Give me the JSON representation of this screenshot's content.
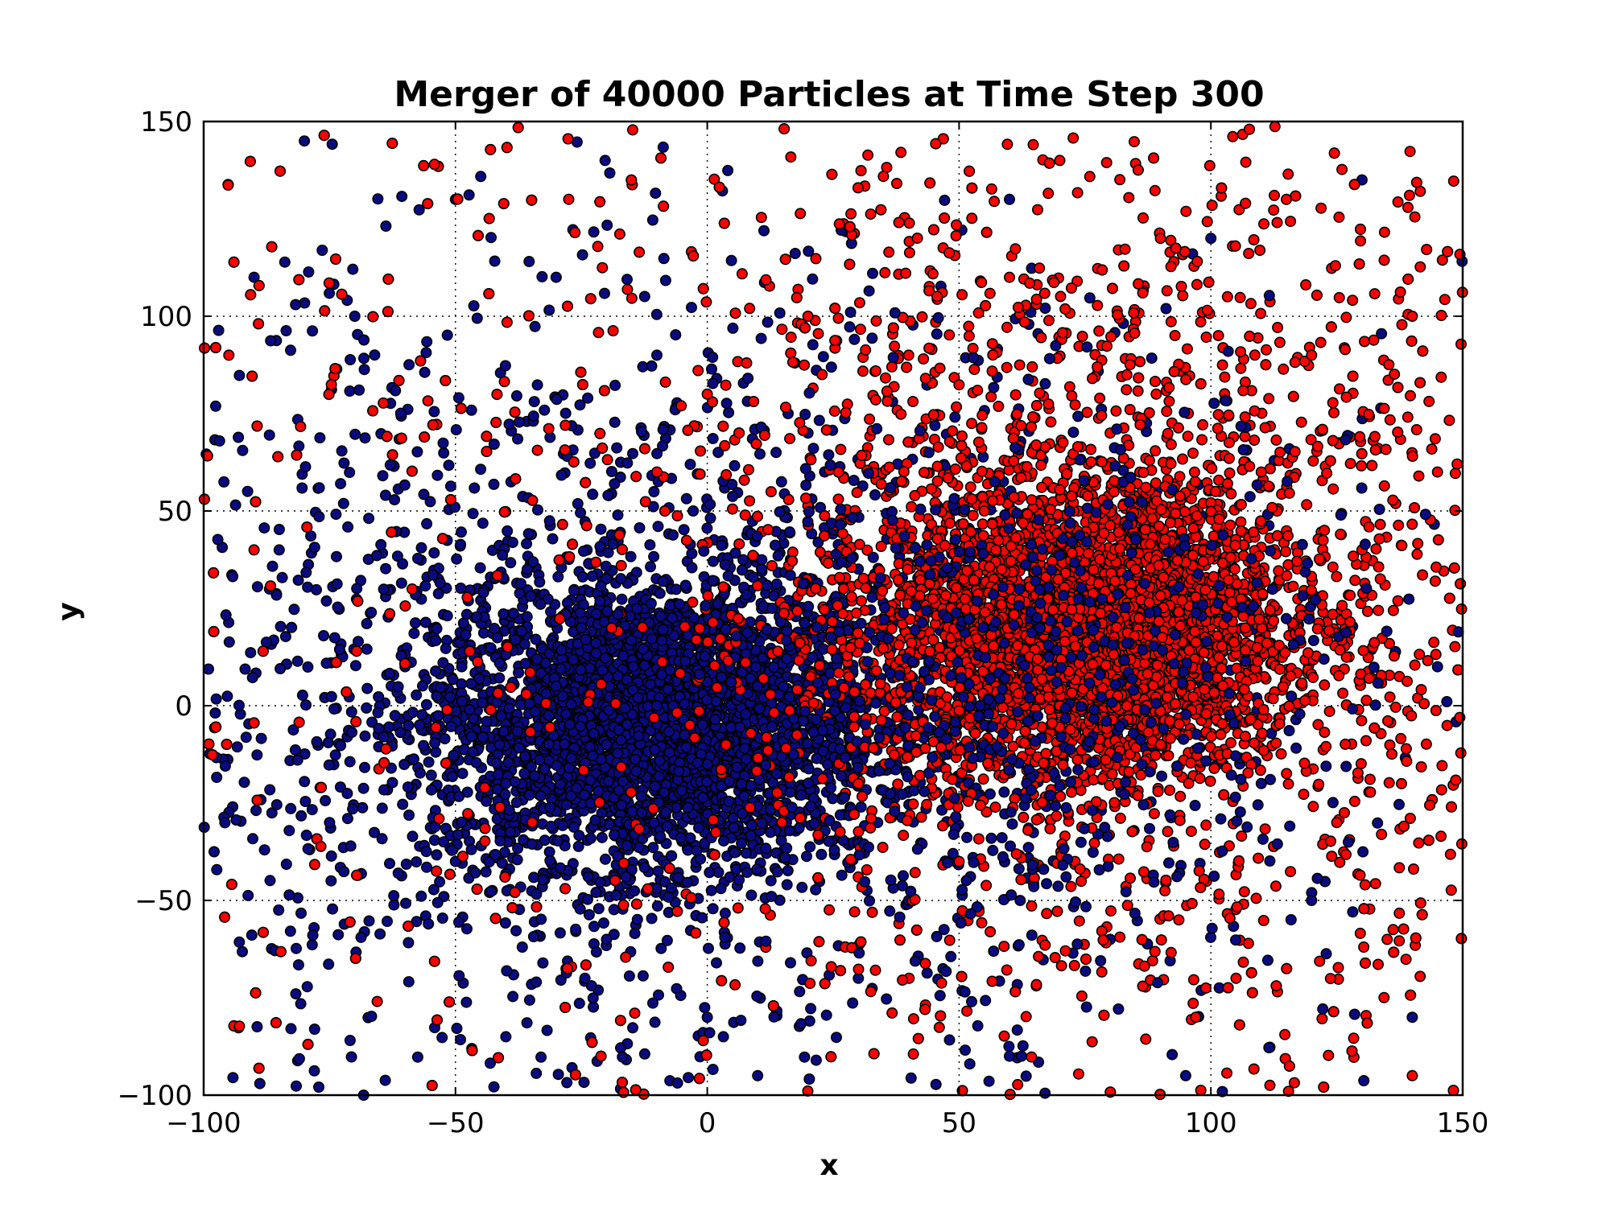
{
  "chart_data": {
    "type": "scatter",
    "title": "Merger of 40000 Particles at Time Step 300",
    "xlabel": "x",
    "ylabel": "y",
    "xlim": [
      -100,
      150
    ],
    "ylim": [
      -100,
      150
    ],
    "grid": true,
    "x_ticks": [
      -100,
      -50,
      0,
      50,
      100,
      150
    ],
    "y_ticks": [
      -100,
      -50,
      0,
      50,
      100,
      150
    ],
    "x_tick_labels": [
      "−100",
      "−50",
      "0",
      "50",
      "100",
      "150"
    ],
    "y_tick_labels": [
      "−100",
      "−50",
      "0",
      "50",
      "100",
      "150"
    ],
    "series": [
      {
        "color": "#0a0a80",
        "edgecolor": "#000000",
        "cluster": {
          "center": [
            -10,
            -5
          ],
          "spread": [
            22,
            18
          ]
        },
        "halo": {
          "center": [
            -15,
            0
          ],
          "spread": [
            60,
            55
          ]
        },
        "points": [
          [
            -30,
            5
          ],
          [
            -20,
            -10
          ],
          [
            -10,
            0
          ],
          [
            0,
            -15
          ],
          [
            10,
            5
          ],
          [
            -40,
            -20
          ],
          [
            -25,
            20
          ],
          [
            5,
            25
          ],
          [
            -50,
            -40
          ],
          [
            -60,
            10
          ],
          [
            -75,
            -30
          ],
          [
            -85,
            40
          ],
          [
            -70,
            100
          ],
          [
            -90,
            110
          ],
          [
            -80,
            145
          ],
          [
            -20,
            -60
          ],
          [
            0,
            -80
          ],
          [
            10,
            -95
          ],
          [
            -40,
            -85
          ],
          [
            30,
            -70
          ],
          [
            40,
            -50
          ],
          [
            20,
            70
          ],
          [
            -10,
            90
          ],
          [
            -30,
            110
          ],
          [
            -50,
            130
          ],
          [
            60,
            130
          ],
          [
            100,
            120
          ],
          [
            130,
            135
          ],
          [
            120,
            -50
          ],
          [
            80,
            -60
          ],
          [
            60,
            -90
          ],
          [
            95,
            -95
          ],
          [
            140,
            -80
          ],
          [
            145,
            10
          ],
          [
            110,
            -20
          ],
          [
            75,
            10
          ]
        ]
      },
      {
        "color": "#ff0000",
        "edgecolor": "#000000",
        "cluster": {
          "center": [
            75,
            20
          ],
          "spread": [
            20,
            18
          ]
        },
        "halo": {
          "center": [
            80,
            30
          ],
          "spread": [
            45,
            55
          ]
        },
        "points": [
          [
            60,
            30
          ],
          [
            75,
            20
          ],
          [
            85,
            35
          ],
          [
            95,
            10
          ],
          [
            70,
            0
          ],
          [
            55,
            50
          ],
          [
            90,
            -10
          ],
          [
            100,
            40
          ],
          [
            80,
            70
          ],
          [
            110,
            60
          ],
          [
            120,
            90
          ],
          [
            130,
            40
          ],
          [
            140,
            100
          ],
          [
            145,
            60
          ],
          [
            125,
            -30
          ],
          [
            135,
            -60
          ],
          [
            140,
            -95
          ],
          [
            105,
            -70
          ],
          [
            90,
            120
          ],
          [
            60,
            110
          ],
          [
            40,
            90
          ],
          [
            20,
            100
          ],
          [
            0,
            80
          ],
          [
            -10,
            60
          ],
          [
            50,
            -40
          ],
          [
            30,
            -20
          ],
          [
            115,
            130
          ],
          [
            70,
            140
          ],
          [
            -90,
            40
          ],
          [
            -95,
            90
          ]
        ]
      }
    ]
  }
}
